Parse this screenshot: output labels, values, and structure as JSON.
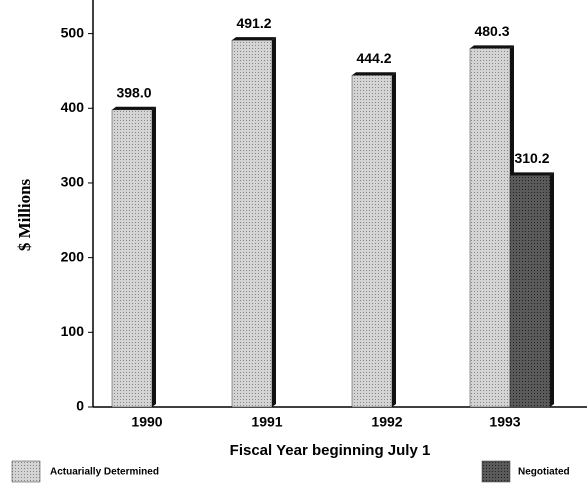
{
  "chart_data": {
    "type": "bar",
    "y_label": "$ Millions",
    "x_label": "Fiscal Year beginning July 1",
    "categories": [
      "1990",
      "1991",
      "1992",
      "1993"
    ],
    "series": [
      {
        "name": "Actuarially Determined",
        "color": "#d4d4d4",
        "values": [
          398.0,
          491.2,
          444.2,
          480.3
        ],
        "value_labels": [
          "398.0",
          "491.2",
          "444.2",
          "480.3"
        ]
      },
      {
        "name": "Negotiated",
        "color": "#5a5a5a",
        "values": [
          null,
          null,
          null,
          310.2
        ],
        "value_labels": [
          null,
          null,
          null,
          "310.2"
        ]
      }
    ],
    "ylim": [
      0,
      545
    ],
    "yticks": [
      0,
      100,
      200,
      300,
      400,
      500
    ],
    "legend": "bottom"
  }
}
